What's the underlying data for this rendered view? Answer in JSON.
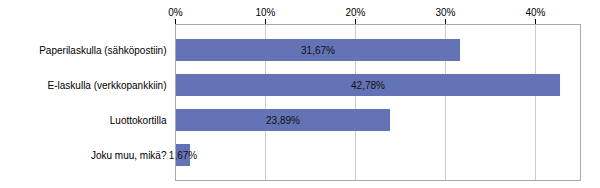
{
  "chart_data": {
    "type": "bar",
    "orientation": "horizontal",
    "categories": [
      "Paperilaskulla (sähköpostiin)",
      "E-laskulla (verkkopankkiin)",
      "Luottokortilla",
      "Joku muu, mikä?"
    ],
    "values": [
      31.67,
      42.78,
      23.89,
      1.67
    ],
    "value_labels": [
      "31,67%",
      "42,78%",
      "23,89%",
      "1,67%"
    ],
    "data_labels": true,
    "color": "#6373b5",
    "xlim": [
      0,
      45
    ],
    "xticks": [
      {
        "value": 0,
        "label": "0%"
      },
      {
        "value": 10,
        "label": "10%"
      },
      {
        "value": 20,
        "label": "20%"
      },
      {
        "value": 30,
        "label": "30%"
      },
      {
        "value": 40,
        "label": "40%"
      }
    ],
    "grid": true
  }
}
